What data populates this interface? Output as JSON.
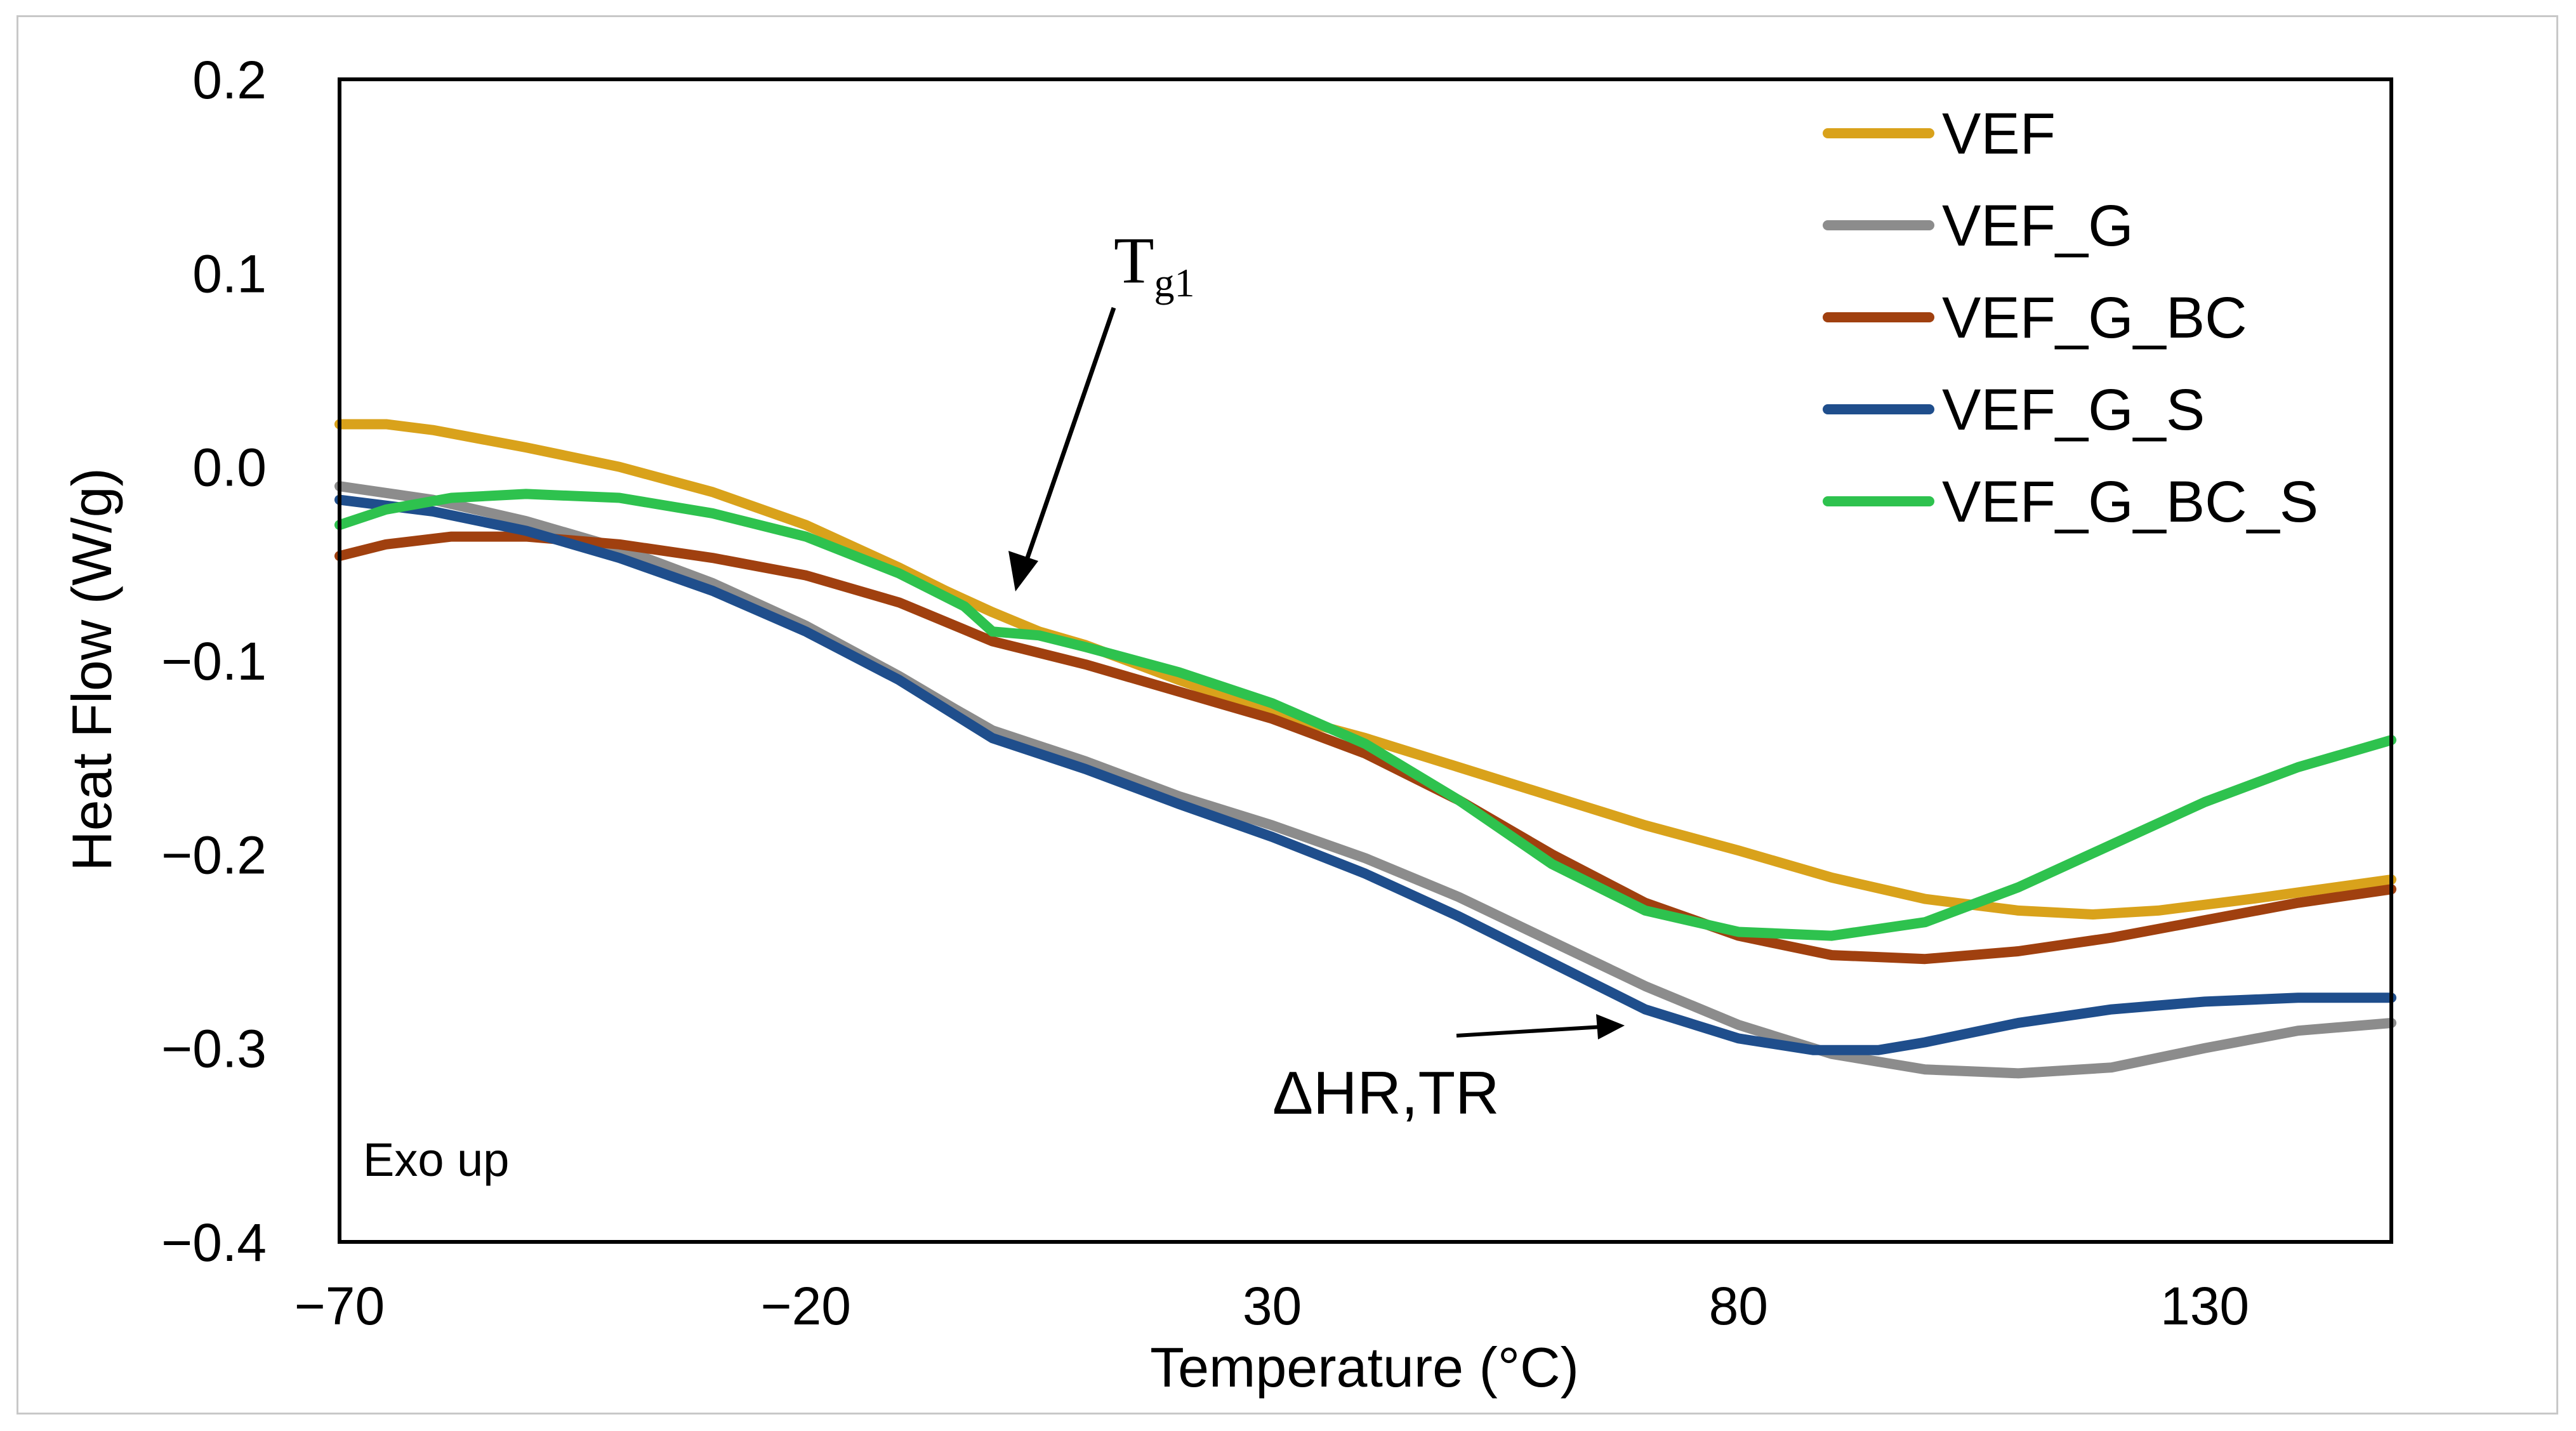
{
  "chart_data": {
    "type": "line",
    "xlabel": "Temperature (°C)",
    "ylabel": "Heat Flow  (W/g)",
    "xlim": [
      -70,
      150
    ],
    "ylim": [
      -0.4,
      0.2
    ],
    "x_ticks": [
      -70,
      -20,
      30,
      80,
      130
    ],
    "x_tick_labels": [
      "−70",
      "−20",
      "30",
      "80",
      "130"
    ],
    "y_ticks": [
      0.2,
      0.1,
      0.0,
      -0.1,
      -0.2,
      -0.3,
      -0.4
    ],
    "y_tick_labels": [
      "0.2",
      "0.1",
      "0.0",
      "−0.1",
      "−0.2",
      "−0.3",
      "−0.4"
    ],
    "grid": false,
    "legend_position": "top-right",
    "series": [
      {
        "name": "VEF",
        "color": "#D9A21B",
        "points": [
          [
            -70,
            0.022
          ],
          [
            -65,
            0.022
          ],
          [
            -60,
            0.019
          ],
          [
            -50,
            0.01
          ],
          [
            -40,
            0.0
          ],
          [
            -30,
            -0.013
          ],
          [
            -20,
            -0.03
          ],
          [
            -10,
            -0.052
          ],
          [
            -5,
            -0.064
          ],
          [
            0,
            -0.075
          ],
          [
            5,
            -0.085
          ],
          [
            10,
            -0.092
          ],
          [
            20,
            -0.11
          ],
          [
            30,
            -0.127
          ],
          [
            40,
            -0.14
          ],
          [
            50,
            -0.155
          ],
          [
            60,
            -0.17
          ],
          [
            70,
            -0.185
          ],
          [
            80,
            -0.198
          ],
          [
            90,
            -0.212
          ],
          [
            100,
            -0.223
          ],
          [
            110,
            -0.229
          ],
          [
            118,
            -0.231
          ],
          [
            125,
            -0.229
          ],
          [
            135,
            -0.223
          ],
          [
            150,
            -0.213
          ]
        ]
      },
      {
        "name": "VEF_G",
        "color": "#8C8C8C",
        "points": [
          [
            -70,
            -0.01
          ],
          [
            -60,
            -0.017
          ],
          [
            -50,
            -0.028
          ],
          [
            -40,
            -0.042
          ],
          [
            -30,
            -0.06
          ],
          [
            -20,
            -0.082
          ],
          [
            -10,
            -0.108
          ],
          [
            -4,
            -0.125
          ],
          [
            0,
            -0.136
          ],
          [
            10,
            -0.152
          ],
          [
            20,
            -0.17
          ],
          [
            30,
            -0.185
          ],
          [
            40,
            -0.202
          ],
          [
            50,
            -0.222
          ],
          [
            60,
            -0.245
          ],
          [
            70,
            -0.268
          ],
          [
            80,
            -0.288
          ],
          [
            90,
            -0.303
          ],
          [
            100,
            -0.311
          ],
          [
            110,
            -0.313
          ],
          [
            120,
            -0.31
          ],
          [
            130,
            -0.3
          ],
          [
            140,
            -0.291
          ],
          [
            150,
            -0.287
          ]
        ]
      },
      {
        "name": "VEF_G_BC",
        "color": "#A0400F",
        "points": [
          [
            -70,
            -0.046
          ],
          [
            -65,
            -0.04
          ],
          [
            -58,
            -0.036
          ],
          [
            -50,
            -0.036
          ],
          [
            -40,
            -0.04
          ],
          [
            -30,
            -0.047
          ],
          [
            -20,
            -0.056
          ],
          [
            -10,
            -0.07
          ],
          [
            0,
            -0.09
          ],
          [
            10,
            -0.102
          ],
          [
            20,
            -0.116
          ],
          [
            30,
            -0.13
          ],
          [
            40,
            -0.148
          ],
          [
            50,
            -0.172
          ],
          [
            60,
            -0.2
          ],
          [
            70,
            -0.225
          ],
          [
            80,
            -0.242
          ],
          [
            90,
            -0.252
          ],
          [
            100,
            -0.254
          ],
          [
            110,
            -0.25
          ],
          [
            120,
            -0.243
          ],
          [
            130,
            -0.234
          ],
          [
            140,
            -0.225
          ],
          [
            150,
            -0.218
          ]
        ]
      },
      {
        "name": "VEF_G_S",
        "color": "#1F4E8C",
        "points": [
          [
            -70,
            -0.017
          ],
          [
            -60,
            -0.023
          ],
          [
            -50,
            -0.033
          ],
          [
            -40,
            -0.047
          ],
          [
            -30,
            -0.064
          ],
          [
            -20,
            -0.085
          ],
          [
            -10,
            -0.11
          ],
          [
            -4,
            -0.128
          ],
          [
            0,
            -0.14
          ],
          [
            10,
            -0.156
          ],
          [
            20,
            -0.174
          ],
          [
            30,
            -0.191
          ],
          [
            40,
            -0.21
          ],
          [
            50,
            -0.232
          ],
          [
            60,
            -0.256
          ],
          [
            70,
            -0.28
          ],
          [
            80,
            -0.295
          ],
          [
            88,
            -0.301
          ],
          [
            95,
            -0.301
          ],
          [
            100,
            -0.297
          ],
          [
            110,
            -0.287
          ],
          [
            120,
            -0.28
          ],
          [
            130,
            -0.276
          ],
          [
            140,
            -0.274
          ],
          [
            150,
            -0.274
          ]
        ]
      },
      {
        "name": "VEF_G_BC_S",
        "color": "#2EC24E",
        "points": [
          [
            -70,
            -0.03
          ],
          [
            -65,
            -0.022
          ],
          [
            -58,
            -0.016
          ],
          [
            -50,
            -0.014
          ],
          [
            -40,
            -0.016
          ],
          [
            -30,
            -0.024
          ],
          [
            -20,
            -0.036
          ],
          [
            -10,
            -0.055
          ],
          [
            -3,
            -0.072
          ],
          [
            0,
            -0.085
          ],
          [
            5,
            -0.087
          ],
          [
            10,
            -0.093
          ],
          [
            20,
            -0.106
          ],
          [
            30,
            -0.122
          ],
          [
            40,
            -0.143
          ],
          [
            50,
            -0.172
          ],
          [
            60,
            -0.205
          ],
          [
            70,
            -0.229
          ],
          [
            80,
            -0.24
          ],
          [
            90,
            -0.242
          ],
          [
            100,
            -0.235
          ],
          [
            110,
            -0.217
          ],
          [
            120,
            -0.195
          ],
          [
            130,
            -0.173
          ],
          [
            140,
            -0.155
          ],
          [
            150,
            -0.141
          ]
        ]
      }
    ],
    "annotations": {
      "tg1_base": "T",
      "tg1_sub": "g1",
      "dhr": "ΔHR,TR",
      "exo": "Exo up"
    }
  }
}
